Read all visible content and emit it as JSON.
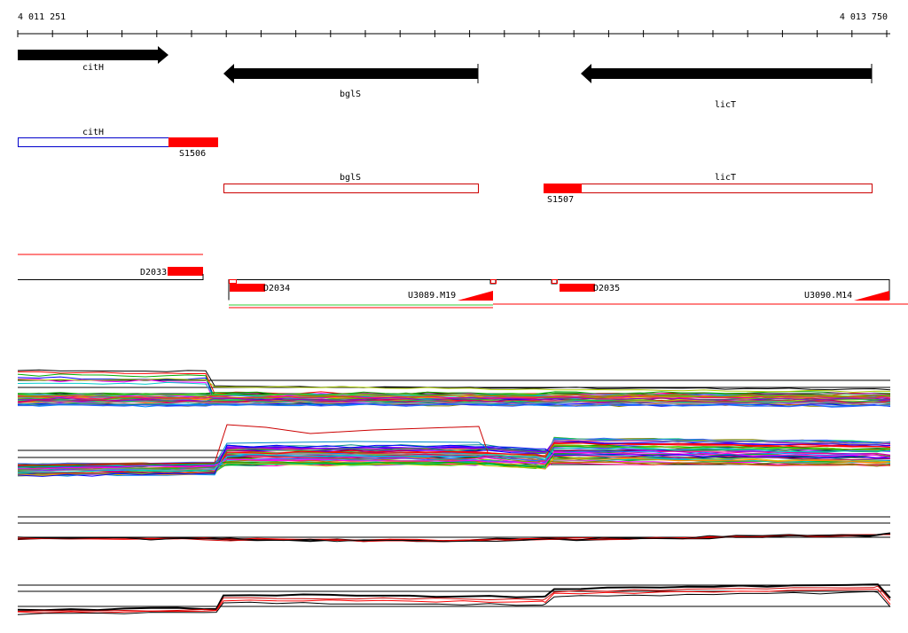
{
  "ruler": {
    "start_label": "4 011 251",
    "end_label": "4 013 750",
    "start": 4011251,
    "end": 4013750
  },
  "genes": [
    {
      "name": "citH",
      "start": 4011251,
      "end": 4011682,
      "strand": "+"
    },
    {
      "name": "bglS",
      "start": 4011846,
      "end": 4012578,
      "strand": "-"
    },
    {
      "name": "licT",
      "start": 4012872,
      "end": 4013733,
      "strand": "-"
    }
  ],
  "annotations": {
    "citH": {
      "label": "citH",
      "start": 4011251,
      "end": 4011683
    },
    "S1506": {
      "label": "S1506",
      "start": 4011683,
      "end": 4011823
    },
    "bglS": {
      "label": "bglS",
      "start": 4011831,
      "end": 4012581
    },
    "licT": {
      "label": "licT",
      "start": 4012739,
      "end": 4013733
    },
    "S1507": {
      "label": "S1507",
      "start": 4012739,
      "end": 4012848
    }
  },
  "segments": {
    "D2033": {
      "label": "D2033"
    },
    "D2034": {
      "label": "D2034"
    },
    "U3089": {
      "label": "U3089.M19"
    },
    "D2035": {
      "label": "D2035"
    },
    "U3090": {
      "label": "U3090.M14"
    }
  },
  "colors": {
    "gene_arrow": "#000000",
    "utr_box": "#ff0000",
    "cds_box_forward": "#0000cc",
    "cds_box_reverse": "#cc0000",
    "axis": "#000000"
  }
}
